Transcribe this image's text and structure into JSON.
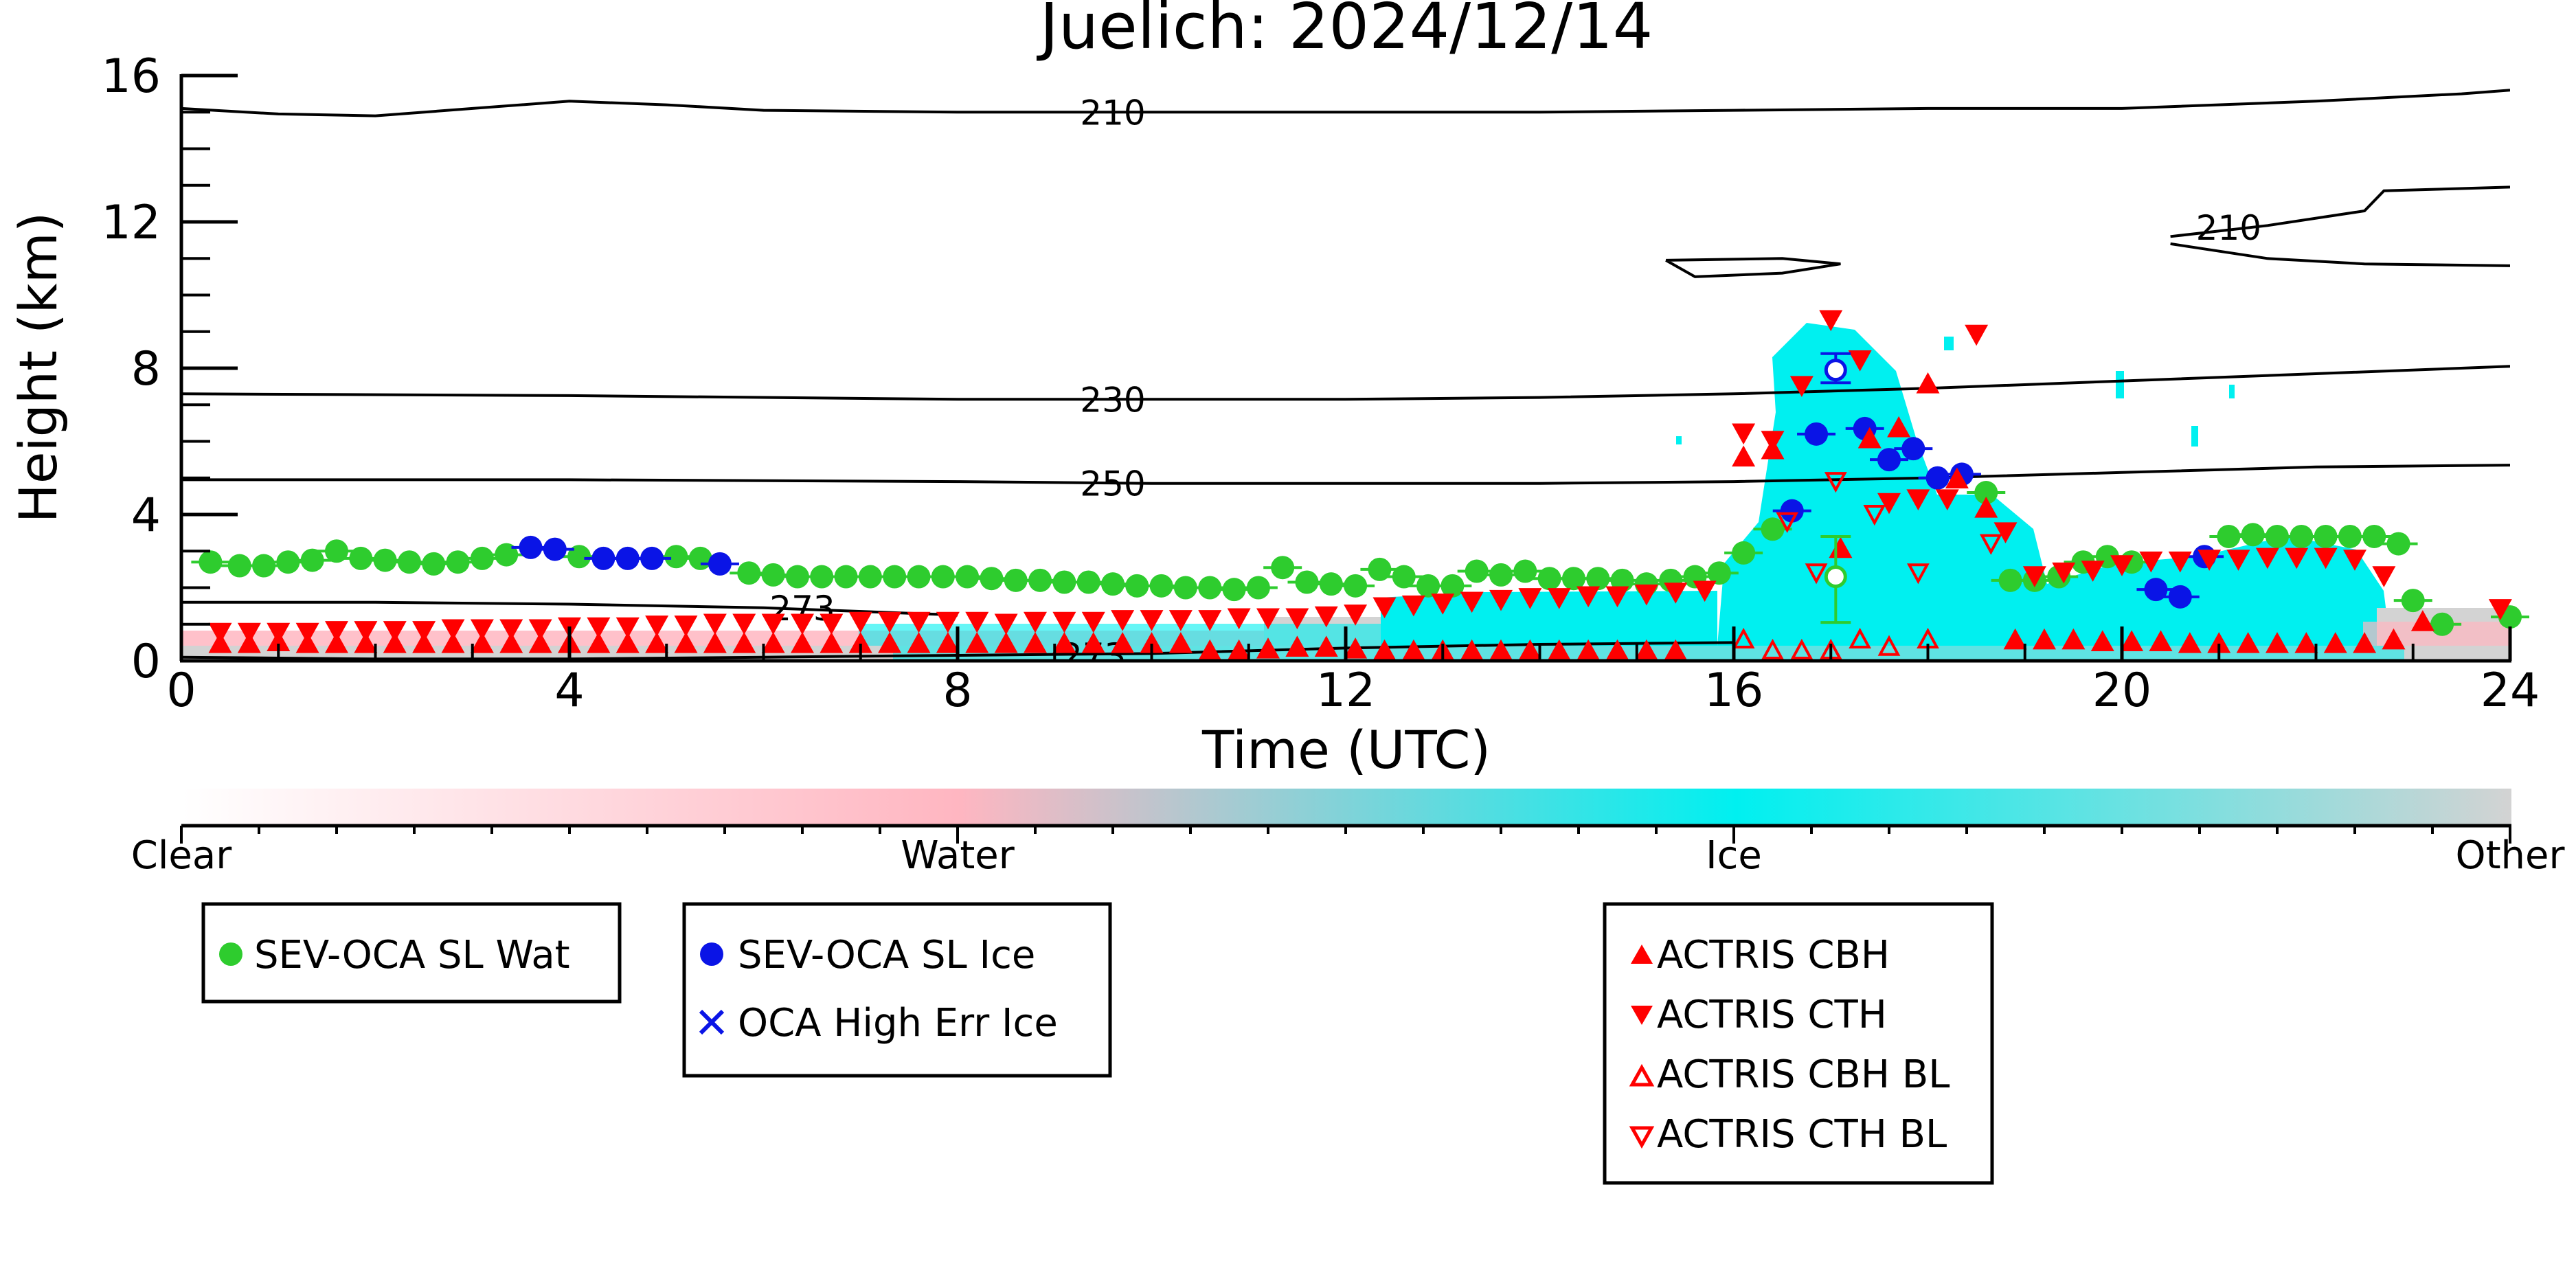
{
  "colors": {
    "water": "#2ecc2e",
    "ice": "#0a14e6",
    "actris": "#ff0000",
    "cyan": "#00f0f0",
    "pink": "#ffb6c1",
    "grey": "#d3d3d3",
    "contour": "#000000"
  },
  "chart_data": {
    "type": "scatter",
    "title": "Juelich: 2024/12/14",
    "xlabel": "Time (UTC)",
    "ylabel": "Height (km)",
    "xlim": [
      0,
      24
    ],
    "ylim": [
      0,
      16
    ],
    "xticks": [
      "0",
      "4",
      "8",
      "12",
      "16",
      "20",
      "24"
    ],
    "yticks": [
      "0",
      "4",
      "8",
      "12",
      "16"
    ],
    "colorbar": {
      "labels": [
        "Clear",
        "Water",
        "Ice",
        "Other"
      ],
      "colors": [
        "#ffffff",
        "#ffb6c1",
        "#00f0f0",
        "#d3d3d3"
      ]
    },
    "contours": [
      {
        "label": "210",
        "points": [
          [
            0,
            15.1
          ],
          [
            1,
            14.95
          ],
          [
            2,
            14.9
          ],
          [
            3,
            15.1
          ],
          [
            4,
            15.3
          ],
          [
            5,
            15.2
          ],
          [
            6,
            15.05
          ],
          [
            8,
            15.0
          ],
          [
            10,
            15.0
          ],
          [
            12,
            15.0
          ],
          [
            14,
            15.0
          ],
          [
            16,
            15.05
          ],
          [
            18,
            15.1
          ],
          [
            20,
            15.1
          ],
          [
            22,
            15.3
          ],
          [
            23.5,
            15.5
          ],
          [
            24,
            15.6
          ]
        ],
        "label_at": [
          9.6,
          15.0
        ]
      },
      {
        "label": "230",
        "points": [
          [
            0,
            7.3
          ],
          [
            4,
            7.25
          ],
          [
            8,
            7.15
          ],
          [
            10,
            7.15
          ],
          [
            12,
            7.15
          ],
          [
            14,
            7.2
          ],
          [
            16,
            7.3
          ],
          [
            18,
            7.45
          ],
          [
            20,
            7.65
          ],
          [
            22,
            7.85
          ],
          [
            24,
            8.05
          ]
        ],
        "label_at": [
          9.6,
          7.15
        ]
      },
      {
        "label": "250",
        "points": [
          [
            0,
            4.95
          ],
          [
            4,
            4.95
          ],
          [
            8,
            4.9
          ],
          [
            10,
            4.85
          ],
          [
            12,
            4.85
          ],
          [
            14,
            4.85
          ],
          [
            16,
            4.9
          ],
          [
            18,
            5.0
          ],
          [
            20,
            5.15
          ],
          [
            22,
            5.3
          ],
          [
            24,
            5.35
          ]
        ],
        "label_at": [
          9.6,
          4.85
        ]
      },
      {
        "label": "210",
        "points": [
          [
            20.5,
            11.6
          ],
          [
            21.5,
            11.9
          ],
          [
            22.5,
            12.3
          ],
          [
            22.7,
            12.85
          ],
          [
            24,
            12.95
          ]
        ],
        "label_at": [
          21.1,
          11.85
        ]
      },
      {
        "label": "",
        "points": [
          [
            20.5,
            11.4
          ],
          [
            21.5,
            11.0
          ],
          [
            22.5,
            10.85
          ],
          [
            24,
            10.8
          ]
        ],
        "label_at": null
      },
      {
        "label": "",
        "points": [
          [
            15.3,
            10.95
          ],
          [
            16.5,
            11.0
          ],
          [
            17.1,
            10.85
          ],
          [
            16.5,
            10.6
          ],
          [
            15.6,
            10.5
          ],
          [
            15.3,
            10.95
          ]
        ],
        "label_at": null
      },
      {
        "label": "273",
        "points": [
          [
            0,
            1.6
          ],
          [
            2,
            1.6
          ],
          [
            4,
            1.55
          ],
          [
            6,
            1.45
          ],
          [
            8,
            1.25
          ]
        ],
        "label_at": [
          6.4,
          1.45
        ]
      },
      {
        "label": "273",
        "points": [
          [
            0,
            0.1
          ],
          [
            2,
            0.05
          ],
          [
            4,
            0.05
          ],
          [
            6,
            0.1
          ],
          [
            8,
            0.15
          ],
          [
            10,
            0.2
          ],
          [
            12,
            0.35
          ],
          [
            14,
            0.45
          ],
          [
            16,
            0.5
          ]
        ],
        "label_at": [
          9.4,
          0.15
        ]
      }
    ],
    "series": [
      {
        "name": "SEV-OCA SL Wat",
        "marker": "circle-filled",
        "color": "#2ecc2e",
        "x": [
          0.3,
          0.6,
          0.85,
          1.1,
          1.35,
          1.6,
          1.85,
          2.1,
          2.35,
          2.6,
          2.85,
          3.1,
          3.35,
          4.1,
          5.1,
          5.35,
          5.85,
          6.1,
          6.35,
          6.6,
          6.85,
          7.1,
          7.35,
          7.6,
          7.85,
          8.1,
          8.35,
          8.6,
          8.85,
          9.1,
          9.35,
          9.6,
          9.85,
          10.1,
          10.35,
          10.6,
          10.85,
          11.1,
          11.35,
          11.6,
          11.85,
          12.1,
          12.35,
          12.6,
          12.85,
          13.1,
          13.35,
          13.6,
          13.85,
          14.1,
          14.35,
          14.6,
          14.85,
          15.1,
          15.35,
          15.6,
          15.85,
          16.1,
          16.4,
          18.6,
          18.85,
          19.1,
          19.35,
          19.6,
          19.85,
          20.1,
          21.1,
          21.35,
          21.6,
          21.85,
          22.1,
          22.35,
          22.6,
          22.85,
          23.0,
          23.3,
          24.0
        ],
        "y": [
          2.7,
          2.6,
          2.6,
          2.7,
          2.75,
          3.0,
          2.8,
          2.75,
          2.7,
          2.65,
          2.7,
          2.8,
          2.9,
          2.85,
          2.85,
          2.8,
          2.4,
          2.35,
          2.3,
          2.3,
          2.3,
          2.3,
          2.3,
          2.3,
          2.3,
          2.3,
          2.25,
          2.2,
          2.2,
          2.15,
          2.15,
          2.1,
          2.05,
          2.05,
          2.0,
          2.0,
          1.95,
          2.0,
          2.55,
          2.15,
          2.1,
          2.05,
          2.5,
          2.3,
          2.05,
          2.05,
          2.45,
          2.35,
          2.45,
          2.25,
          2.25,
          2.25,
          2.2,
          2.1,
          2.2,
          2.3,
          2.4,
          2.95,
          3.6,
          4.6,
          2.2,
          2.2,
          2.3,
          2.7,
          2.85,
          2.7,
          3.4,
          3.45,
          3.4,
          3.4,
          3.4,
          3.4,
          3.4,
          3.2,
          1.65,
          1.0,
          1.2
        ]
      },
      {
        "name": "SEV-OCA SL Ice",
        "marker": "circle-filled",
        "color": "#0a14e6",
        "x": [
          3.6,
          3.85,
          4.35,
          4.6,
          4.85,
          5.55,
          16.6,
          16.85,
          17.35,
          17.6,
          17.85,
          18.1,
          18.35,
          20.35,
          20.6,
          20.85
        ],
        "y": [
          3.1,
          3.05,
          2.8,
          2.8,
          2.8,
          2.65,
          4.1,
          6.2,
          6.35,
          5.5,
          5.8,
          5.0,
          5.1,
          1.95,
          1.75,
          2.85
        ]
      },
      {
        "name": "OCA High Err Ice",
        "marker": "x",
        "color": "#0a14e6",
        "x": [],
        "y": []
      },
      {
        "name": "ACTRIS CBH",
        "marker": "triangle-up-filled",
        "color": "#ff0000",
        "x": [
          0.4,
          0.7,
          1.0,
          1.3,
          1.6,
          1.9,
          2.2,
          2.5,
          2.8,
          3.1,
          3.4,
          3.7,
          4.0,
          4.3,
          4.6,
          4.9,
          5.2,
          5.5,
          5.8,
          6.1,
          6.4,
          6.7,
          7.0,
          7.3,
          7.6,
          7.9,
          8.2,
          8.5,
          8.8,
          9.1,
          9.4,
          9.7,
          10.0,
          10.3,
          10.6,
          10.9,
          11.2,
          11.5,
          11.8,
          12.1,
          12.4,
          12.7,
          13.0,
          13.3,
          13.6,
          13.9,
          14.2,
          14.5,
          14.8,
          15.1,
          15.4,
          16.1,
          16.4,
          17.1,
          17.4,
          17.7,
          18.0,
          18.3,
          18.6,
          18.9,
          19.2,
          19.5,
          19.8,
          20.1,
          20.4,
          20.7,
          21.0,
          21.3,
          21.6,
          21.9,
          22.2,
          22.5,
          22.8,
          23.1
        ],
        "y": [
          0.5,
          0.5,
          0.55,
          0.5,
          0.5,
          0.5,
          0.5,
          0.5,
          0.5,
          0.5,
          0.5,
          0.5,
          0.5,
          0.5,
          0.5,
          0.5,
          0.5,
          0.5,
          0.5,
          0.5,
          0.5,
          0.5,
          0.5,
          0.5,
          0.5,
          0.5,
          0.5,
          0.5,
          0.5,
          0.5,
          0.5,
          0.5,
          0.5,
          0.5,
          0.3,
          0.3,
          0.35,
          0.4,
          0.4,
          0.35,
          0.3,
          0.3,
          0.3,
          0.3,
          0.3,
          0.3,
          0.3,
          0.3,
          0.3,
          0.3,
          0.3,
          5.6,
          5.8,
          3.1,
          6.1,
          6.4,
          7.6,
          5.0,
          4.2,
          0.6,
          0.6,
          0.6,
          0.55,
          0.55,
          0.55,
          0.5,
          0.5,
          0.5,
          0.5,
          0.5,
          0.5,
          0.5,
          0.6,
          1.1
        ]
      },
      {
        "name": "ACTRIS CTH",
        "marker": "triangle-down-filled",
        "color": "#ff0000",
        "x": [
          0.4,
          0.7,
          1.0,
          1.3,
          1.6,
          1.9,
          2.2,
          2.5,
          2.8,
          3.1,
          3.4,
          3.7,
          4.0,
          4.3,
          4.6,
          4.9,
          5.2,
          5.5,
          5.8,
          6.1,
          6.4,
          6.7,
          7.0,
          7.3,
          7.6,
          7.9,
          8.2,
          8.5,
          8.8,
          9.1,
          9.4,
          9.7,
          10.0,
          10.3,
          10.6,
          10.9,
          11.2,
          11.5,
          11.8,
          12.1,
          12.4,
          12.7,
          13.0,
          13.3,
          13.6,
          13.9,
          14.2,
          14.5,
          14.8,
          15.1,
          15.4,
          15.7,
          16.1,
          16.4,
          16.7,
          17.0,
          17.3,
          17.6,
          17.9,
          18.2,
          18.5,
          18.8,
          19.1,
          19.4,
          19.7,
          20.0,
          20.3,
          20.6,
          20.9,
          21.2,
          21.5,
          21.8,
          22.1,
          22.4,
          22.7,
          23.9
        ],
        "y": [
          0.75,
          0.75,
          0.75,
          0.75,
          0.8,
          0.8,
          0.8,
          0.8,
          0.85,
          0.85,
          0.85,
          0.85,
          0.9,
          0.9,
          0.9,
          0.95,
          0.95,
          1.0,
          1.0,
          1.0,
          1.0,
          1.0,
          1.05,
          1.05,
          1.05,
          1.05,
          1.05,
          1.0,
          1.05,
          1.05,
          1.05,
          1.1,
          1.1,
          1.1,
          1.1,
          1.15,
          1.15,
          1.15,
          1.2,
          1.25,
          1.45,
          1.5,
          1.55,
          1.6,
          1.65,
          1.7,
          1.7,
          1.75,
          1.75,
          1.8,
          1.85,
          1.9,
          6.2,
          6.0,
          7.5,
          9.3,
          8.2,
          4.3,
          4.4,
          4.4,
          8.9,
          3.5,
          2.3,
          2.4,
          2.45,
          2.6,
          2.7,
          2.7,
          2.75,
          2.75,
          2.8,
          2.8,
          2.8,
          2.75,
          2.3,
          1.4
        ]
      },
      {
        "name": "ACTRIS CBH BL",
        "marker": "triangle-up-open",
        "color": "#ff0000",
        "x": [
          16.1,
          16.4,
          16.7,
          17.0,
          17.3,
          17.6,
          18.0
        ],
        "y": [
          0.6,
          0.3,
          0.3,
          0.3,
          0.6,
          0.4,
          0.6
        ]
      },
      {
        "name": "ACTRIS CTH BL",
        "marker": "triangle-down-open",
        "color": "#ff0000",
        "x": [
          16.55,
          16.85,
          17.05,
          18.65,
          17.45,
          17.9
        ],
        "y": [
          3.8,
          2.4,
          4.9,
          3.2,
          4.0,
          2.4
        ]
      }
    ],
    "special_points": [
      {
        "series": "SEV-OCA SL Wat",
        "style": "open",
        "x": 17.05,
        "y": 2.3,
        "yerr": [
          1.05,
          3.4
        ]
      },
      {
        "series": "SEV-OCA SL Ice",
        "style": "open",
        "x": 17.05,
        "y": 7.95,
        "yerr": [
          7.6,
          8.4
        ]
      }
    ],
    "legend": [
      {
        "box": "legend-1",
        "entries": [
          "SEV-OCA SL Wat"
        ]
      },
      {
        "box": "legend-2",
        "entries": [
          "SEV-OCA SL Ice",
          "OCA High Err Ice"
        ]
      },
      {
        "box": "legend-3",
        "entries": [
          "ACTRIS CBH",
          "ACTRIS CTH",
          "ACTRIS CBH BL",
          "ACTRIS CTH BL"
        ]
      }
    ]
  }
}
